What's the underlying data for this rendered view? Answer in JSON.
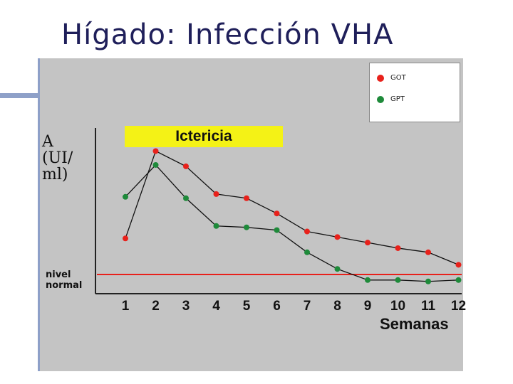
{
  "slide": {
    "title": "Hígado: Infección VHA"
  },
  "chart_data": {
    "type": "line",
    "title": "",
    "xlabel": "Semanas",
    "ylabel": [
      "A",
      "(UI/",
      "ml)"
    ],
    "categories": [
      "1",
      "2",
      "3",
      "4",
      "5",
      "6",
      "7",
      "8",
      "9",
      "10",
      "11",
      "12"
    ],
    "ylim": [
      0,
      100
    ],
    "series": [
      {
        "name": "GOT",
        "color": "#e8211b",
        "values": [
          26,
          89,
          78,
          58,
          55,
          44,
          31,
          27,
          23,
          19,
          16,
          7
        ]
      },
      {
        "name": "GPT",
        "color": "#1e8a3a",
        "values": [
          56,
          79,
          55,
          35,
          34,
          32,
          16,
          4,
          -4,
          -4,
          -5,
          -4
        ]
      }
    ],
    "reference_line": {
      "label": [
        "nivel",
        "normal"
      ],
      "value": 0,
      "color": "#e8211b"
    },
    "annotation": {
      "text": "Ictericia",
      "color": "#f4f216",
      "x_range": [
        "1",
        "6"
      ]
    },
    "legend_position": "top-right",
    "grid": false
  }
}
